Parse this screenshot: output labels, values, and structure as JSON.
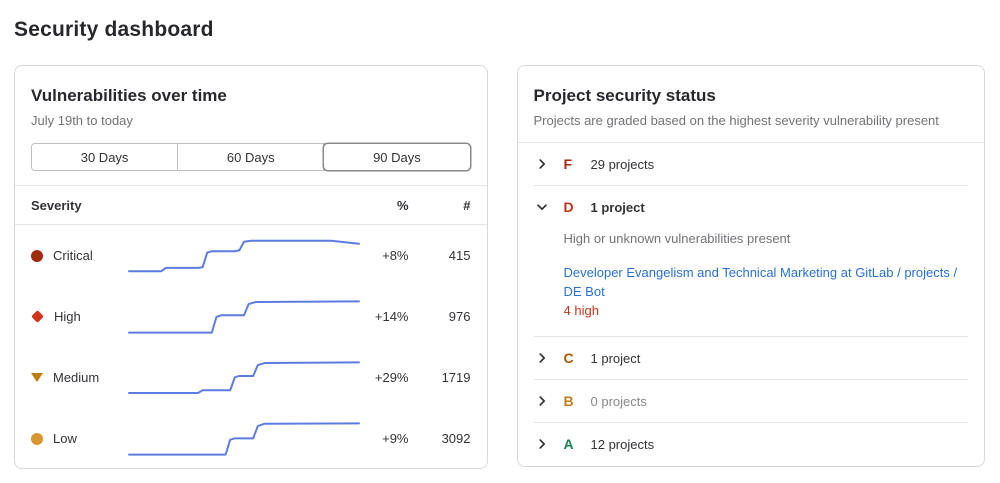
{
  "page": {
    "title": "Security dashboard"
  },
  "colors": {
    "sparkline": "#5c7ce0",
    "link": "#2970d6",
    "finding_red": "#c0341d"
  },
  "vulnerabilities_card": {
    "title": "Vulnerabilities over time",
    "subtitle": "July 19th to today",
    "range_buttons": [
      {
        "label": "30 Days",
        "selected": false
      },
      {
        "label": "60 Days",
        "selected": false
      },
      {
        "label": "90 Days",
        "selected": true
      }
    ],
    "table": {
      "headers": {
        "severity": "Severity",
        "percent": "%",
        "count": "#"
      },
      "rows": [
        {
          "severity": "Critical",
          "icon": "critical-circle",
          "icon_color": "#a02a10",
          "percent": "+8%",
          "count": "415",
          "sparkline": [
            [
              0,
              95
            ],
            [
              14,
              95
            ],
            [
              16,
              85
            ],
            [
              30,
              85
            ],
            [
              32,
              83
            ],
            [
              34,
              40
            ],
            [
              36,
              36
            ],
            [
              46,
              36
            ],
            [
              48,
              33
            ],
            [
              50,
              8
            ],
            [
              53,
              5
            ],
            [
              88,
              5
            ],
            [
              100,
              14
            ]
          ]
        },
        {
          "severity": "High",
          "icon": "high-diamond",
          "icon_color": "#d1331b",
          "percent": "+14%",
          "count": "976",
          "sparkline": [
            [
              0,
              96
            ],
            [
              36,
              96
            ],
            [
              38,
              50
            ],
            [
              40,
              45
            ],
            [
              50,
              45
            ],
            [
              52,
              12
            ],
            [
              55,
              6
            ],
            [
              100,
              4
            ]
          ]
        },
        {
          "severity": "Medium",
          "icon": "medium-triangle",
          "icon_color": "#c17d10",
          "percent": "+29%",
          "count": "1719",
          "sparkline": [
            [
              0,
              94
            ],
            [
              30,
              94
            ],
            [
              32,
              86
            ],
            [
              44,
              86
            ],
            [
              46,
              48
            ],
            [
              48,
              44
            ],
            [
              54,
              44
            ],
            [
              56,
              12
            ],
            [
              59,
              6
            ],
            [
              100,
              4
            ]
          ]
        },
        {
          "severity": "Low",
          "icon": "low-circle",
          "icon_color": "#d99530",
          "percent": "+9%",
          "count": "3092",
          "sparkline": [
            [
              0,
              96
            ],
            [
              42,
              96
            ],
            [
              44,
              52
            ],
            [
              46,
              48
            ],
            [
              54,
              48
            ],
            [
              56,
              12
            ],
            [
              59,
              5
            ],
            [
              100,
              4
            ]
          ]
        }
      ]
    }
  },
  "project_status_card": {
    "title": "Project security status",
    "subtitle": "Projects are graded based on the highest severity vulnerability present",
    "grades": [
      {
        "letter": "F",
        "color": "#b2220e",
        "count_label": "29 projects",
        "expanded": false
      },
      {
        "letter": "D",
        "color": "#c0341d",
        "count_label": "1 project",
        "expanded": true,
        "description": "High or unknown vulnerabilities present",
        "project_link": "Developer Evangelism and Technical Marketing at GitLab / projects / DE Bot",
        "finding": "4 high"
      },
      {
        "letter": "C",
        "color": "#aa5a00",
        "count_label": "1 project",
        "expanded": false
      },
      {
        "letter": "B",
        "color": "#bf7e16",
        "count_label": "0 projects",
        "expanded": false
      },
      {
        "letter": "A",
        "color": "#168450",
        "count_label": "12 projects",
        "expanded": false
      }
    ]
  }
}
